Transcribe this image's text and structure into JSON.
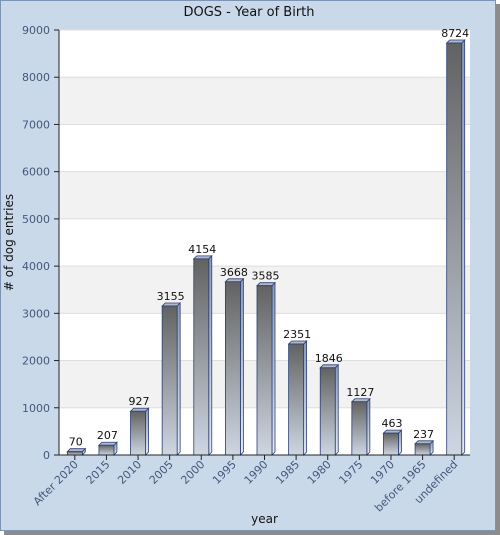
{
  "chart_data": {
    "type": "bar",
    "title": "DOGS - Year of Birth",
    "xlabel": "year",
    "ylabel": "# of dog entries",
    "categories": [
      "After 2020",
      "2015",
      "2010",
      "2005",
      "2000",
      "1995",
      "1990",
      "1985",
      "1980",
      "1975",
      "1970",
      "before 1965",
      "undefined"
    ],
    "values": [
      70,
      207,
      927,
      3155,
      4154,
      3668,
      3585,
      2351,
      1846,
      1127,
      463,
      237,
      8724
    ],
    "ylim": [
      0,
      9000
    ],
    "yticks": [
      0,
      1000,
      2000,
      3000,
      4000,
      5000,
      6000,
      7000,
      8000,
      9000
    ],
    "grid": true,
    "legend": "none",
    "colors": {
      "bar_top": "#626262",
      "bar_bottom": "#cdd6e2",
      "bar_edge": "#2b3f75",
      "frame": "#c9d9ea"
    }
  }
}
